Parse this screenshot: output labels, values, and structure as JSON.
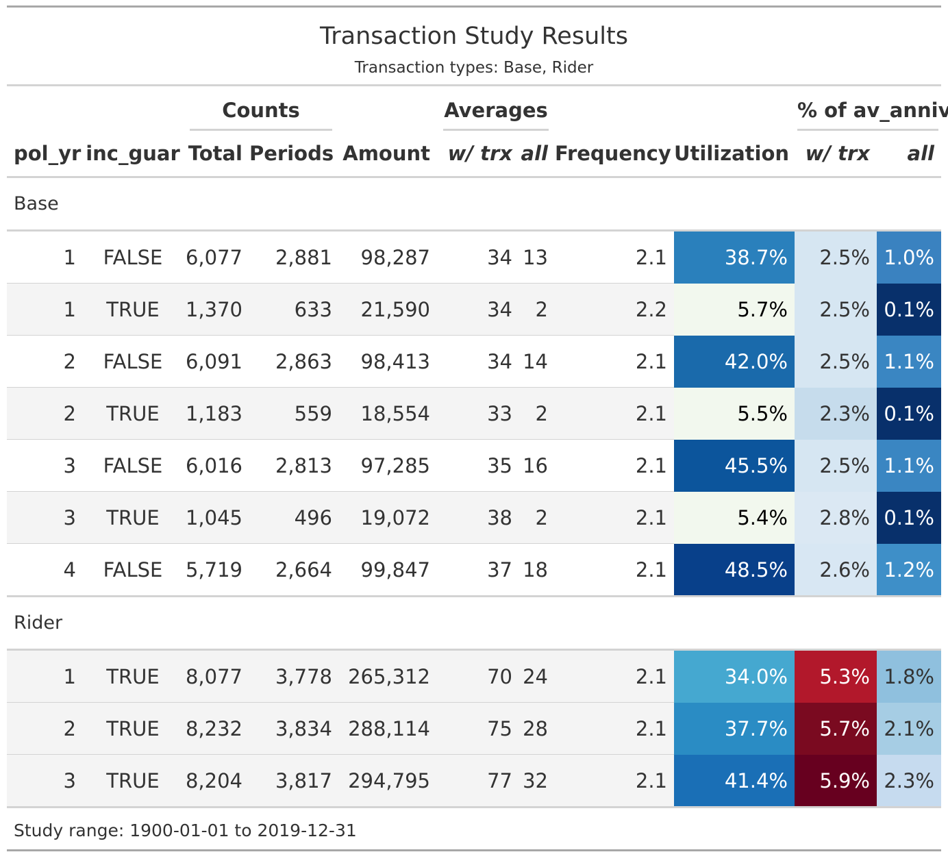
{
  "title": "Transaction Study Results",
  "subtitle": "Transaction types: Base, Rider",
  "spanners": {
    "counts": "Counts",
    "averages": "Averages",
    "pct_av_anniv": "% of av_anniv"
  },
  "columns": {
    "pol_yr": "pol_yr",
    "inc_guar": "inc_guar",
    "total": "Total",
    "periods": "Periods",
    "amount": "Amount",
    "avg_w_trx": "w/ trx",
    "avg_all": "all",
    "frequency": "Frequency",
    "utilization": "Utilization",
    "pct_w_trx": "w/ trx",
    "pct_all": "all"
  },
  "groups": [
    {
      "label": "Base",
      "rows": [
        {
          "pol_yr": "1",
          "inc_guar": "FALSE",
          "total": "6,077",
          "periods": "2,881",
          "amount": "98,287",
          "avg_w_trx": "34",
          "avg_all": "13",
          "frequency": "2.1",
          "utilization": "38.7%",
          "pct_w_trx": "2.5%",
          "pct_all": "1.0%",
          "colors": {
            "utilization": {
              "bg": "#2a80bc",
              "fg": "#ffffff"
            },
            "pct_w_trx": {
              "bg": "#d6e6f2",
              "fg": "#333333"
            },
            "pct_all": {
              "bg": "#3a82c0",
              "fg": "#ffffff"
            }
          }
        },
        {
          "pol_yr": "1",
          "inc_guar": "TRUE",
          "total": "1,370",
          "periods": "633",
          "amount": "21,590",
          "avg_w_trx": "34",
          "avg_all": "2",
          "frequency": "2.2",
          "utilization": "5.7%",
          "pct_w_trx": "2.5%",
          "pct_all": "0.1%",
          "colors": {
            "utilization": {
              "bg": "#f2f8ee",
              "fg": "#000000"
            },
            "pct_w_trx": {
              "bg": "#d6e6f2",
              "fg": "#333333"
            },
            "pct_all": {
              "bg": "#08306b",
              "fg": "#ffffff"
            }
          }
        },
        {
          "pol_yr": "2",
          "inc_guar": "FALSE",
          "total": "6,091",
          "periods": "2,863",
          "amount": "98,413",
          "avg_w_trx": "34",
          "avg_all": "14",
          "frequency": "2.1",
          "utilization": "42.0%",
          "pct_w_trx": "2.5%",
          "pct_all": "1.1%",
          "colors": {
            "utilization": {
              "bg": "#1a6aab",
              "fg": "#ffffff"
            },
            "pct_w_trx": {
              "bg": "#d6e6f2",
              "fg": "#333333"
            },
            "pct_all": {
              "bg": "#3a86c2",
              "fg": "#ffffff"
            }
          }
        },
        {
          "pol_yr": "2",
          "inc_guar": "TRUE",
          "total": "1,183",
          "periods": "559",
          "amount": "18,554",
          "avg_w_trx": "33",
          "avg_all": "2",
          "frequency": "2.1",
          "utilization": "5.5%",
          "pct_w_trx": "2.3%",
          "pct_all": "0.1%",
          "colors": {
            "utilization": {
              "bg": "#f2f8ee",
              "fg": "#000000"
            },
            "pct_w_trx": {
              "bg": "#c6dcec",
              "fg": "#333333"
            },
            "pct_all": {
              "bg": "#08306b",
              "fg": "#ffffff"
            }
          }
        },
        {
          "pol_yr": "3",
          "inc_guar": "FALSE",
          "total": "6,016",
          "periods": "2,813",
          "amount": "97,285",
          "avg_w_trx": "35",
          "avg_all": "16",
          "frequency": "2.1",
          "utilization": "45.5%",
          "pct_w_trx": "2.5%",
          "pct_all": "1.1%",
          "colors": {
            "utilization": {
              "bg": "#0c559c",
              "fg": "#ffffff"
            },
            "pct_w_trx": {
              "bg": "#d6e6f2",
              "fg": "#333333"
            },
            "pct_all": {
              "bg": "#3a86c2",
              "fg": "#ffffff"
            }
          }
        },
        {
          "pol_yr": "3",
          "inc_guar": "TRUE",
          "total": "1,045",
          "periods": "496",
          "amount": "19,072",
          "avg_w_trx": "38",
          "avg_all": "2",
          "frequency": "2.1",
          "utilization": "5.4%",
          "pct_w_trx": "2.8%",
          "pct_all": "0.1%",
          "colors": {
            "utilization": {
              "bg": "#f2f8ee",
              "fg": "#000000"
            },
            "pct_w_trx": {
              "bg": "#dbe8f3",
              "fg": "#333333"
            },
            "pct_all": {
              "bg": "#08306b",
              "fg": "#ffffff"
            }
          }
        },
        {
          "pol_yr": "4",
          "inc_guar": "FALSE",
          "total": "5,719",
          "periods": "2,664",
          "amount": "99,847",
          "avg_w_trx": "37",
          "avg_all": "18",
          "frequency": "2.1",
          "utilization": "48.5%",
          "pct_w_trx": "2.6%",
          "pct_all": "1.2%",
          "colors": {
            "utilization": {
              "bg": "#08408a",
              "fg": "#ffffff"
            },
            "pct_w_trx": {
              "bg": "#d8e7f3",
              "fg": "#333333"
            },
            "pct_all": {
              "bg": "#3e8fc8",
              "fg": "#ffffff"
            }
          }
        }
      ]
    },
    {
      "label": "Rider",
      "rows": [
        {
          "pol_yr": "1",
          "inc_guar": "TRUE",
          "total": "8,077",
          "periods": "3,778",
          "amount": "265,312",
          "avg_w_trx": "70",
          "avg_all": "24",
          "frequency": "2.1",
          "utilization": "34.0%",
          "pct_w_trx": "5.3%",
          "pct_all": "1.8%",
          "colors": {
            "utilization": {
              "bg": "#45a8d0",
              "fg": "#ffffff"
            },
            "pct_w_trx": {
              "bg": "#b2182b",
              "fg": "#ffffff"
            },
            "pct_all": {
              "bg": "#8fc0de",
              "fg": "#333333"
            }
          }
        },
        {
          "pol_yr": "2",
          "inc_guar": "TRUE",
          "total": "8,232",
          "periods": "3,834",
          "amount": "288,114",
          "avg_w_trx": "75",
          "avg_all": "28",
          "frequency": "2.1",
          "utilization": "37.7%",
          "pct_w_trx": "5.7%",
          "pct_all": "2.1%",
          "colors": {
            "utilization": {
              "bg": "#2a8cc4",
              "fg": "#ffffff"
            },
            "pct_w_trx": {
              "bg": "#7a0a20",
              "fg": "#ffffff"
            },
            "pct_all": {
              "bg": "#a6cde4",
              "fg": "#333333"
            }
          }
        },
        {
          "pol_yr": "3",
          "inc_guar": "TRUE",
          "total": "8,204",
          "periods": "3,817",
          "amount": "294,795",
          "avg_w_trx": "77",
          "avg_all": "32",
          "frequency": "2.1",
          "utilization": "41.4%",
          "pct_w_trx": "5.9%",
          "pct_all": "2.3%",
          "colors": {
            "utilization": {
              "bg": "#1a6fb6",
              "fg": "#ffffff"
            },
            "pct_w_trx": {
              "bg": "#67001f",
              "fg": "#ffffff"
            },
            "pct_all": {
              "bg": "#c6dbef",
              "fg": "#333333"
            }
          }
        }
      ]
    }
  ],
  "footnote": "Study range: 1900-01-01 to 2019-12-31"
}
